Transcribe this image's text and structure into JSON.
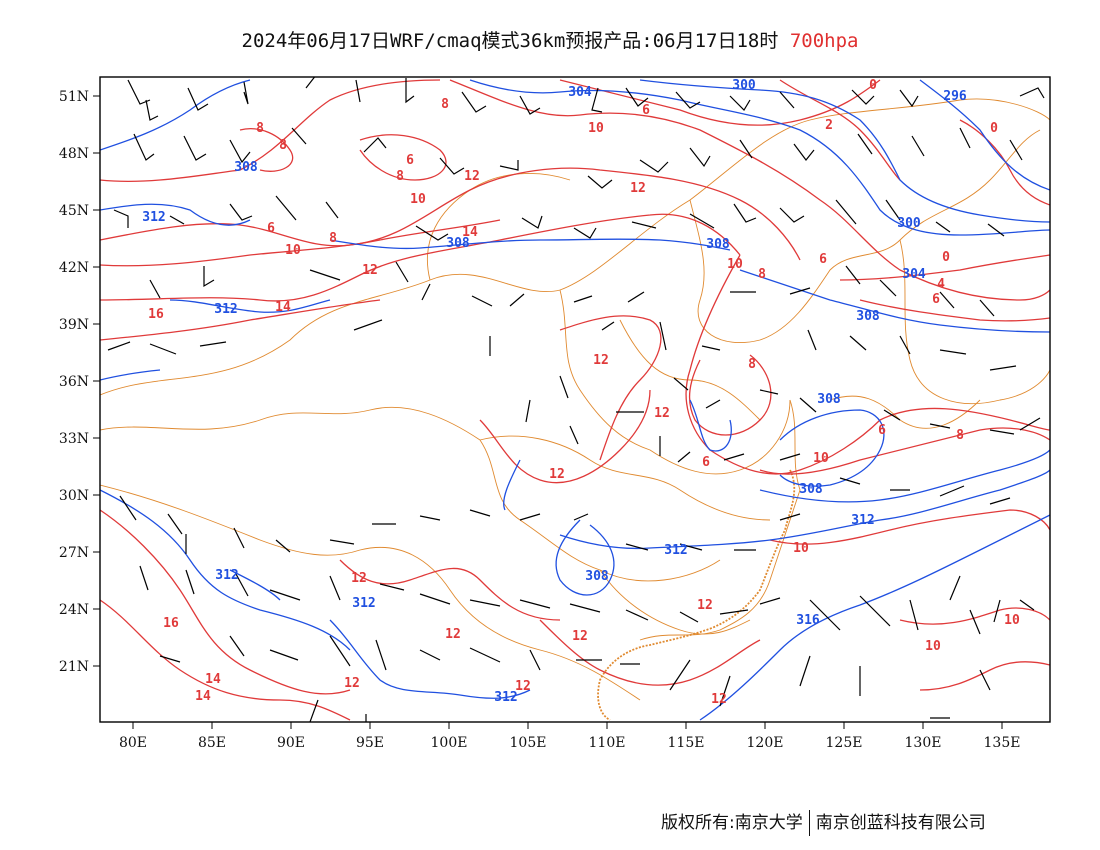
{
  "title": {
    "prefix": "2024年06月17日WRF/cmaq模式36km预报产品:06月17日18时",
    "level": "700hpa"
  },
  "colors": {
    "height_contour": "#2050e0",
    "temperature_contour": "#e03a3a",
    "border": "#e08a30",
    "wind_barb": "#000000"
  },
  "axes": {
    "lon_labels": [
      "80E",
      "85E",
      "90E",
      "95E",
      "100E",
      "105E",
      "110E",
      "115E",
      "120E",
      "125E",
      "130E",
      "135E"
    ],
    "lat_labels": [
      "51N",
      "48N",
      "45N",
      "42N",
      "39N",
      "36N",
      "33N",
      "30N",
      "27N",
      "24N",
      "21N"
    ]
  },
  "height_labels": [
    "304",
    "300",
    "296",
    "308",
    "312",
    "300",
    "304",
    "308",
    "308",
    "312",
    "308",
    "312",
    "312",
    "316",
    "312",
    "312",
    "308",
    "308"
  ],
  "temperature_labels": [
    "8",
    "6",
    "8",
    "10",
    "8",
    "6",
    "8",
    "12",
    "10",
    "0",
    "2",
    "0",
    "6",
    "10",
    "12",
    "14",
    "8",
    "12",
    "10",
    "8",
    "6",
    "0",
    "4",
    "6",
    "16",
    "14",
    "12",
    "12",
    "8",
    "10",
    "6",
    "8",
    "12",
    "10",
    "12",
    "12",
    "12",
    "12",
    "12",
    "16",
    "14",
    "14",
    "12",
    "12",
    "12",
    "10",
    "10",
    "10",
    "6",
    "8"
  ],
  "footer": {
    "left": "版权所有:南京大学",
    "right": "南京创蓝科技有限公司"
  }
}
